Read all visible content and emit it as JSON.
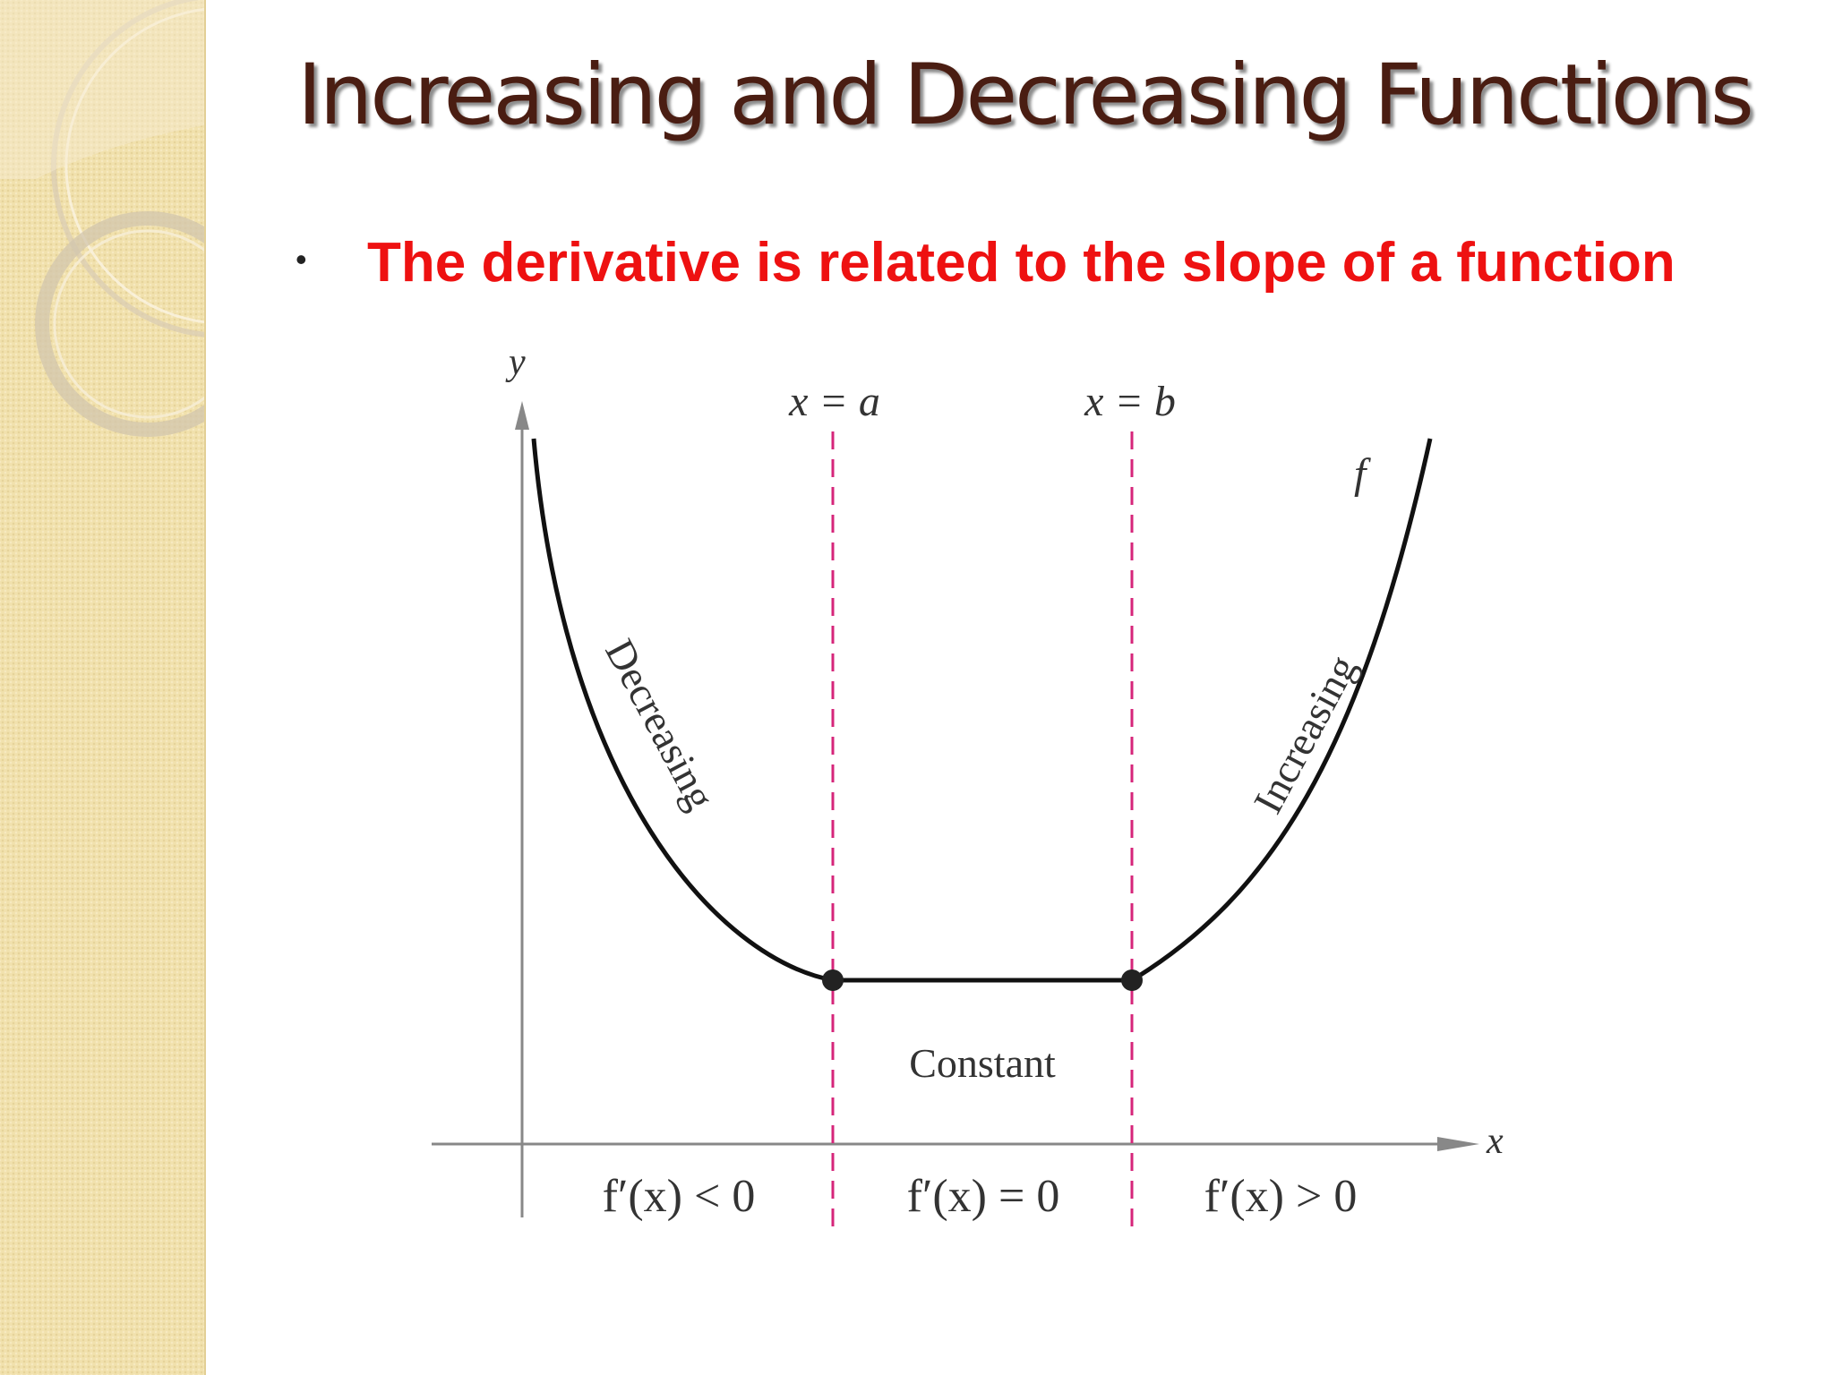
{
  "slide": {
    "title": "Increasing and Decreasing Functions",
    "bullet": "The derivative is related to the slope of a function"
  },
  "diagram": {
    "axes": {
      "x": "x",
      "y": "y"
    },
    "boundaries": {
      "a": "x = a",
      "b": "x = b"
    },
    "function_label": "f",
    "regions": {
      "decreasing": "Decreasing",
      "constant": "Constant",
      "increasing": "Increasing"
    },
    "conditions": {
      "left": "f′(x) < 0",
      "middle": "f′(x) = 0",
      "right": "f′(x) > 0"
    }
  },
  "colors": {
    "title": "#4a1d12",
    "bullet": "#ee1111",
    "boundary": "#d6257a",
    "sidebar": "#f1e1ad"
  }
}
